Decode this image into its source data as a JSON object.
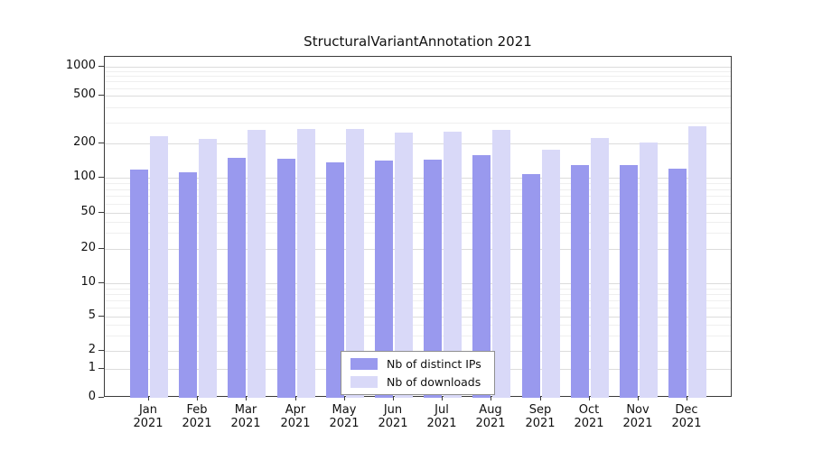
{
  "chart_data": {
    "type": "bar",
    "title": "StructuralVariantAnnotation 2021",
    "scale": "log",
    "categories": [
      "Jan 2021",
      "Feb 2021",
      "Mar 2021",
      "Apr 2021",
      "May 2021",
      "Jun 2021",
      "Jul 2021",
      "Aug 2021",
      "Sep 2021",
      "Oct 2021",
      "Nov 2021",
      "Dec 2021"
    ],
    "series": [
      {
        "name": "Nb of distinct IPs",
        "color": "#9999ee",
        "values": [
          117,
          111,
          149,
          147,
          136,
          141,
          144,
          158,
          108,
          130,
          128,
          120
        ]
      },
      {
        "name": "Nb of downloads",
        "color": "#d9d9f8",
        "values": [
          230,
          218,
          260,
          264,
          264,
          246,
          250,
          258,
          177,
          220,
          205,
          278
        ]
      }
    ],
    "yticks": [
      0,
      1,
      2,
      5,
      10,
      20,
      50,
      100,
      200,
      500,
      1000
    ],
    "ylim": [
      0,
      1000
    ],
    "grid": true,
    "legend_position": "bottom-center-inside"
  }
}
